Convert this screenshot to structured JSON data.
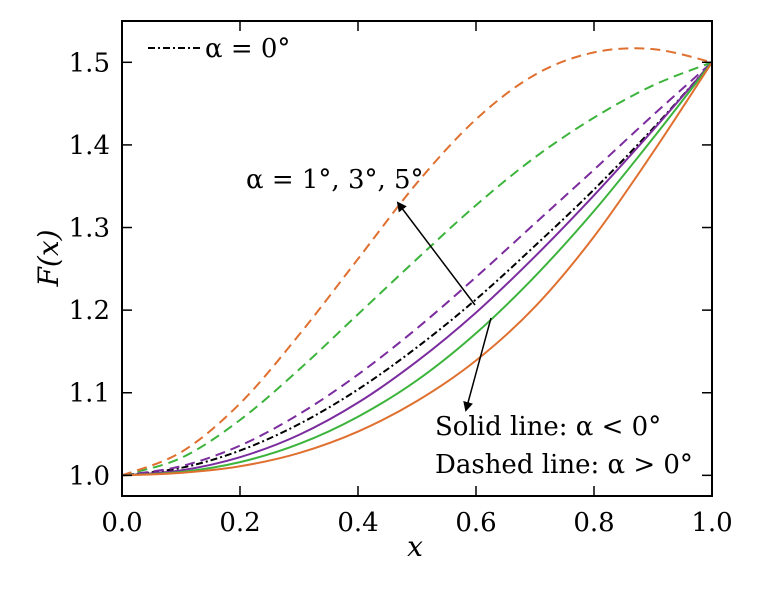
{
  "chart_data": {
    "type": "line",
    "xlabel": "x",
    "ylabel": "F(x)",
    "xlim": [
      0.0,
      1.0
    ],
    "ylim": [
      0.975,
      1.55
    ],
    "xticks": [
      "0.0",
      "0.2",
      "0.4",
      "0.6",
      "0.8",
      "1.0"
    ],
    "yticks": [
      "1.0",
      "1.1",
      "1.2",
      "1.3",
      "1.4",
      "1.5"
    ],
    "grid": false,
    "legend": {
      "position": "top-left",
      "label": "α = 0°"
    },
    "annotations": {
      "positive": "α = 1°, 3°, 5°",
      "solid_note": "Solid line: α < 0°",
      "dashed_note": "Dashed line: α > 0°"
    },
    "x": [
      0.0,
      0.1,
      0.2,
      0.3,
      0.4,
      0.5,
      0.6,
      0.7,
      0.8,
      0.9,
      1.0
    ],
    "series": [
      {
        "color": "#000000",
        "dash": "dashdot",
        "values": [
          1.0,
          1.009,
          1.03,
          1.062,
          1.104,
          1.155,
          1.213,
          1.278,
          1.346,
          1.42,
          1.5
        ]
      },
      {
        "color": "#7b2c9e",
        "dash": "dashed",
        "values": [
          1.0,
          1.011,
          1.036,
          1.074,
          1.122,
          1.178,
          1.24,
          1.305,
          1.37,
          1.436,
          1.5
        ]
      },
      {
        "color": "#3cb43c",
        "dash": "dashed",
        "values": [
          1.0,
          1.021,
          1.067,
          1.128,
          1.195,
          1.262,
          1.327,
          1.385,
          1.433,
          1.472,
          1.5
        ]
      },
      {
        "color": "#e07030",
        "dash": "dashed",
        "values": [
          1.0,
          1.028,
          1.087,
          1.17,
          1.262,
          1.354,
          1.431,
          1.485,
          1.512,
          1.516,
          1.5
        ]
      },
      {
        "color": "#7b2c9e",
        "dash": "solid",
        "values": [
          1.0,
          1.006,
          1.022,
          1.049,
          1.088,
          1.138,
          1.197,
          1.265,
          1.339,
          1.418,
          1.5
        ]
      },
      {
        "color": "#3cb43c",
        "dash": "solid",
        "values": [
          1.0,
          1.004,
          1.016,
          1.038,
          1.071,
          1.115,
          1.172,
          1.241,
          1.32,
          1.408,
          1.5
        ]
      },
      {
        "color": "#e07030",
        "dash": "solid",
        "values": [
          1.0,
          1.003,
          1.011,
          1.027,
          1.053,
          1.09,
          1.139,
          1.204,
          1.289,
          1.391,
          1.5
        ]
      }
    ]
  }
}
